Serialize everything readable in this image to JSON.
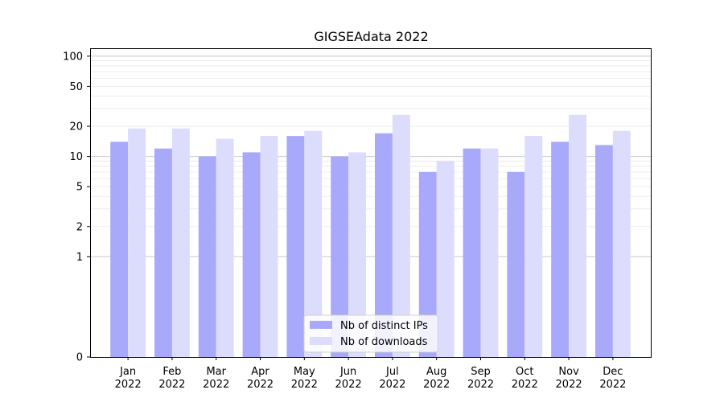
{
  "chart_data": {
    "type": "bar",
    "title": "GIGSEAdata 2022",
    "xlabel": "",
    "ylabel": "",
    "yscale": "symlog",
    "ylim": [
      0,
      120
    ],
    "y_ticks": [
      {
        "value": 0,
        "label": "0"
      },
      {
        "value": 1,
        "label": "1"
      },
      {
        "value": 2,
        "label": "2"
      },
      {
        "value": 5,
        "label": "5"
      },
      {
        "value": 10,
        "label": "10"
      },
      {
        "value": 20,
        "label": "20"
      },
      {
        "value": 50,
        "label": "50"
      },
      {
        "value": 100,
        "label": "100"
      }
    ],
    "categories": [
      {
        "month": "Jan",
        "year": "2022"
      },
      {
        "month": "Feb",
        "year": "2022"
      },
      {
        "month": "Mar",
        "year": "2022"
      },
      {
        "month": "Apr",
        "year": "2022"
      },
      {
        "month": "May",
        "year": "2022"
      },
      {
        "month": "Jun",
        "year": "2022"
      },
      {
        "month": "Jul",
        "year": "2022"
      },
      {
        "month": "Aug",
        "year": "2022"
      },
      {
        "month": "Sep",
        "year": "2022"
      },
      {
        "month": "Oct",
        "year": "2022"
      },
      {
        "month": "Nov",
        "year": "2022"
      },
      {
        "month": "Dec",
        "year": "2022"
      }
    ],
    "series": [
      {
        "name": "Nb of distinct IPs",
        "color": "#a9a9fb",
        "values": [
          14,
          12,
          10,
          11,
          16,
          10,
          17,
          7,
          12,
          7,
          14,
          13
        ]
      },
      {
        "name": "Nb of downloads",
        "color": "#dcdcfd",
        "values": [
          19,
          19,
          15,
          16,
          18,
          11,
          26,
          9,
          12,
          16,
          26,
          18
        ]
      }
    ],
    "grid": true,
    "legend_position": "bottom-center"
  }
}
